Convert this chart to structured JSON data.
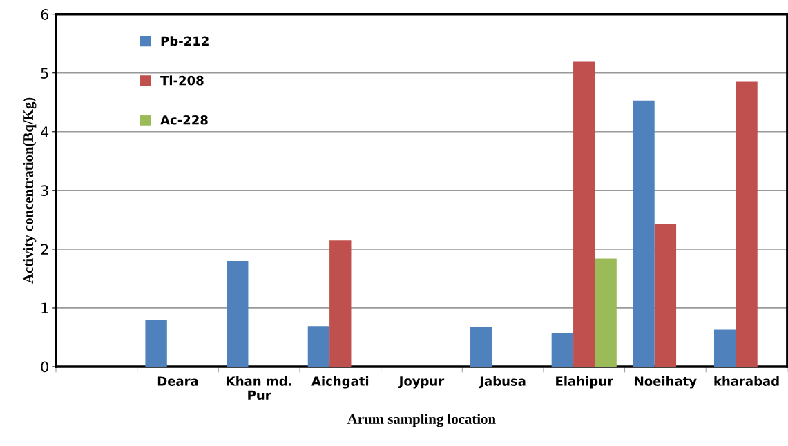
{
  "chart_data": {
    "type": "bar",
    "xlabel": "Arum sampling location",
    "ylabel": "Activity concentration(Bq/Kg)",
    "categories": [
      null,
      "Deara",
      "Khan md.\nPur",
      "Aichgati",
      "Joypur",
      "Jabusa",
      "Elahipur",
      "Noeihaty",
      "kharabad"
    ],
    "series": [
      {
        "name": "Pb-212",
        "color": "#4f81bd",
        "values": [
          null,
          0.8,
          1.8,
          0.69,
          null,
          0.67,
          0.57,
          4.53,
          0.63
        ]
      },
      {
        "name": "Tl-208",
        "color": "#c0504d",
        "values": [
          null,
          null,
          null,
          2.15,
          null,
          null,
          5.19,
          2.43,
          4.85
        ]
      },
      {
        "name": "Ac-228",
        "color": "#9bbb59",
        "values": [
          null,
          null,
          null,
          null,
          null,
          null,
          1.84,
          null,
          null
        ]
      }
    ],
    "ylim": [
      0,
      6
    ],
    "yticks": [
      0,
      1,
      2,
      3,
      4,
      5,
      6
    ],
    "grid": "y",
    "legend": "top left"
  }
}
